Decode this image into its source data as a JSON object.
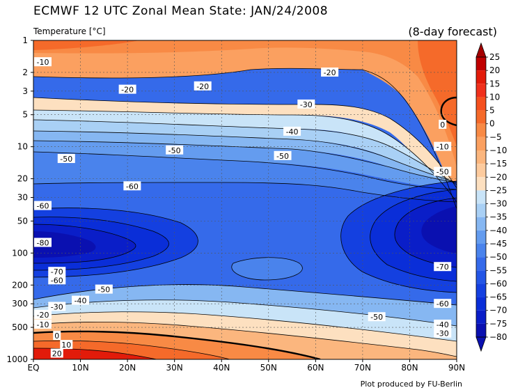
{
  "title": "ECMWF 12 UTC Zonal Mean State: JAN/24/2008",
  "subtitle": "Temperature [°C]",
  "forecast_label": "(8-day forecast)",
  "credit": "Plot produced by FU-Berlin",
  "chart_data": {
    "type": "contour",
    "x_ticks": [
      "EQ",
      "10N",
      "20N",
      "30N",
      "40N",
      "50N",
      "60N",
      "70N",
      "80N",
      "90N"
    ],
    "x_values": [
      0,
      10,
      20,
      30,
      40,
      50,
      60,
      70,
      80,
      90
    ],
    "y_ticks": [
      "1",
      "2",
      "3",
      "5",
      "10",
      "20",
      "30",
      "50",
      "100",
      "200",
      "300",
      "500",
      "1000"
    ],
    "y_values": [
      1,
      2,
      3,
      5,
      10,
      20,
      30,
      50,
      100,
      200,
      300,
      500,
      1000
    ],
    "y_scale": "log",
    "ylabel": "Temperature [°C]",
    "colorbar_levels": [
      25,
      20,
      15,
      10,
      5,
      0,
      -5,
      -10,
      -15,
      -20,
      -25,
      -30,
      -35,
      -40,
      -45,
      -50,
      -55,
      -60,
      -65,
      -70,
      -75,
      -80
    ],
    "colorbar_colors": [
      "#a50000",
      "#c00000",
      "#e21b0a",
      "#f0301c",
      "#f5501e",
      "#f56a2a",
      "#f88a45",
      "#fba060",
      "#fbb67e",
      "#fdcb9e",
      "#fde0c0",
      "#c9e4f8",
      "#a9d0f5",
      "#86b7f2",
      "#649cef",
      "#4a83ec",
      "#356aea",
      "#2355e6",
      "#1440e0",
      "#0a2ed8",
      "#0a1ec8",
      "#0a10b0"
    ],
    "contour_labels": [
      {
        "text": "-10",
        "lat": 2,
        "p": 1.6
      },
      {
        "text": "-20",
        "lat": 63,
        "p": 2.0
      },
      {
        "text": "-20",
        "lat": 20,
        "p": 2.9
      },
      {
        "text": "-20",
        "lat": 36,
        "p": 2.7
      },
      {
        "text": "-30",
        "lat": 58,
        "p": 4.0
      },
      {
        "text": "-40",
        "lat": 55,
        "p": 7.2
      },
      {
        "text": "0",
        "lat": 87,
        "p": 6.2
      },
      {
        "text": "-10",
        "lat": 87,
        "p": 10.0
      },
      {
        "text": "-50",
        "lat": 7,
        "p": 13.0
      },
      {
        "text": "-50",
        "lat": 30,
        "p": 10.8
      },
      {
        "text": "-50",
        "lat": 53,
        "p": 12.2
      },
      {
        "text": "-50",
        "lat": 87,
        "p": 17.2
      },
      {
        "text": "-60",
        "lat": 2,
        "p": 36
      },
      {
        "text": "-60",
        "lat": 21,
        "p": 23.5
      },
      {
        "text": "-80",
        "lat": 2,
        "p": 80
      },
      {
        "text": "-70",
        "lat": 5,
        "p": 150
      },
      {
        "text": "-70",
        "lat": 87,
        "p": 135
      },
      {
        "text": "-60",
        "lat": 5,
        "p": 180
      },
      {
        "text": "-50",
        "lat": 15,
        "p": 220
      },
      {
        "text": "-40",
        "lat": 10,
        "p": 280
      },
      {
        "text": "-30",
        "lat": 5,
        "p": 320
      },
      {
        "text": "-20",
        "lat": 2,
        "p": 380
      },
      {
        "text": "-10",
        "lat": 2,
        "p": 470
      },
      {
        "text": "0",
        "lat": 5,
        "p": 600
      },
      {
        "text": "10",
        "lat": 7,
        "p": 730
      },
      {
        "text": "20",
        "lat": 5,
        "p": 880
      },
      {
        "text": "-60",
        "lat": 87,
        "p": 300
      },
      {
        "text": "-50",
        "lat": 73,
        "p": 400
      },
      {
        "text": "-40",
        "lat": 87,
        "p": 470
      },
      {
        "text": "-30",
        "lat": 87,
        "p": 570
      }
    ]
  }
}
